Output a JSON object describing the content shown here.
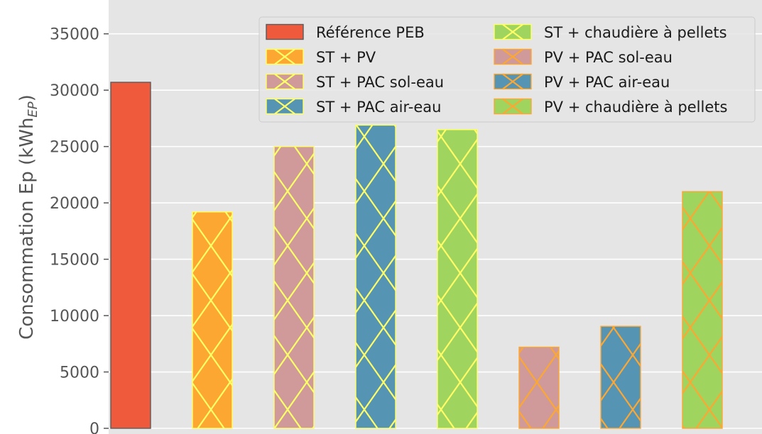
{
  "chart_data": {
    "type": "bar",
    "ylabel_main": "Consommation Ep (kWh",
    "ylabel_sub": "EP",
    "ylabel_close": ")",
    "ylim": [
      0,
      38000
    ],
    "yticks": [
      0,
      5000,
      10000,
      15000,
      20000,
      25000,
      30000,
      35000
    ],
    "grid": true,
    "legend_position": "top-right",
    "series": [
      {
        "name": "Référence PEB",
        "value": 30700,
        "color": "#f05a3c",
        "hatch": "none",
        "hatch_color": "#5a5a5a"
      },
      {
        "name": "ST + PV",
        "value": 19200,
        "color": "#fda733",
        "hatch": "x",
        "hatch_color": "#ffff66"
      },
      {
        "name": "ST + PAC sol-eau",
        "value": 25000,
        "color": "#cf9a99",
        "hatch": "x",
        "hatch_color": "#ffff66"
      },
      {
        "name": "ST + PAC air-eau",
        "value": 26900,
        "color": "#5594b3",
        "hatch": "x",
        "hatch_color": "#ffff66"
      },
      {
        "name": "ST + chaudière à pellets",
        "value": 26500,
        "color": "#9fd45e",
        "hatch": "x",
        "hatch_color": "#ffff66"
      },
      {
        "name": "PV + PAC sol-eau",
        "value": 7200,
        "color": "#cf9a99",
        "hatch": "x",
        "hatch_color": "#fda733"
      },
      {
        "name": "PV + PAC air-eau",
        "value": 9050,
        "color": "#5594b3",
        "hatch": "x",
        "hatch_color": "#fda733"
      },
      {
        "name": "PV + chaudière à pellets",
        "value": 21000,
        "color": "#9fd45e",
        "hatch": "x",
        "hatch_color": "#fda733"
      }
    ]
  }
}
